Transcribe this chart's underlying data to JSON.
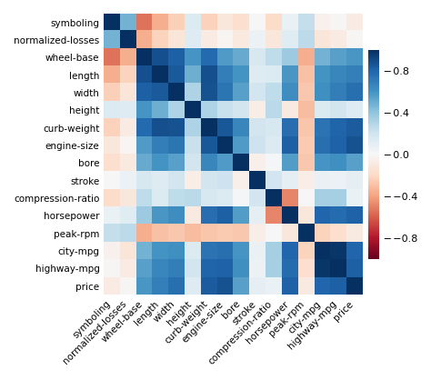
{
  "labels": [
    "symboling",
    "normalized-losses",
    "wheel-base",
    "length",
    "width",
    "height",
    "curb-weight",
    "engine-size",
    "bore",
    "stroke",
    "compression-ratio",
    "horsepower",
    "peak-rpm",
    "city-mpg",
    "highway-mpg",
    "price"
  ],
  "corr_matrix": [
    [
      1.0,
      0.47,
      -0.54,
      -0.36,
      -0.24,
      0.14,
      -0.23,
      -0.11,
      -0.17,
      0.0,
      -0.18,
      0.07,
      0.24,
      -0.04,
      -0.01,
      -0.08
    ],
    [
      0.47,
      1.0,
      -0.36,
      -0.22,
      -0.12,
      0.13,
      -0.08,
      -0.02,
      -0.1,
      0.06,
      -0.11,
      0.12,
      0.26,
      -0.12,
      -0.08,
      -0.01
    ],
    [
      -0.54,
      -0.36,
      1.0,
      0.88,
      0.82,
      0.59,
      0.78,
      0.57,
      0.5,
      0.16,
      0.25,
      0.36,
      -0.36,
      0.47,
      0.54,
      0.58
    ],
    [
      -0.36,
      -0.22,
      0.88,
      1.0,
      0.84,
      0.49,
      0.88,
      0.69,
      0.6,
      0.13,
      0.14,
      0.58,
      -0.29,
      0.6,
      0.65,
      0.68
    ],
    [
      -0.24,
      -0.12,
      0.82,
      0.84,
      1.0,
      0.31,
      0.87,
      0.73,
      0.54,
      0.18,
      0.25,
      0.62,
      -0.27,
      0.61,
      0.69,
      0.75
    ],
    [
      0.14,
      0.13,
      0.59,
      0.49,
      0.31,
      1.0,
      0.31,
      0.22,
      0.18,
      -0.06,
      0.27,
      -0.09,
      -0.31,
      0.14,
      0.18,
      0.13
    ],
    [
      -0.23,
      -0.08,
      0.78,
      0.88,
      0.87,
      0.31,
      1.0,
      0.85,
      0.65,
      0.18,
      0.16,
      0.76,
      -0.28,
      0.74,
      0.8,
      0.83
    ],
    [
      -0.11,
      -0.02,
      0.57,
      0.69,
      0.73,
      0.22,
      0.85,
      1.0,
      0.57,
      0.21,
      0.14,
      0.82,
      -0.26,
      0.75,
      0.81,
      0.87
    ],
    [
      -0.17,
      -0.1,
      0.5,
      0.6,
      0.54,
      0.18,
      0.65,
      0.57,
      1.0,
      -0.05,
      0.01,
      0.56,
      -0.27,
      0.59,
      0.61,
      0.54
    ],
    [
      0.0,
      0.06,
      0.16,
      0.13,
      0.18,
      -0.06,
      0.18,
      0.21,
      -0.05,
      1.0,
      0.19,
      0.1,
      -0.07,
      0.07,
      0.06,
      0.09
    ],
    [
      -0.18,
      -0.11,
      0.25,
      0.14,
      0.25,
      0.27,
      0.16,
      0.14,
      0.01,
      0.19,
      1.0,
      -0.49,
      0.0,
      0.33,
      0.33,
      0.07
    ],
    [
      0.07,
      0.12,
      0.36,
      0.58,
      0.62,
      -0.09,
      0.76,
      0.82,
      0.56,
      0.1,
      -0.49,
      1.0,
      -0.11,
      0.79,
      0.77,
      0.81
    ],
    [
      0.24,
      0.26,
      -0.36,
      -0.29,
      -0.27,
      -0.31,
      -0.28,
      -0.26,
      -0.27,
      -0.07,
      0.0,
      -0.11,
      1.0,
      -0.22,
      -0.17,
      -0.09
    ],
    [
      -0.04,
      -0.12,
      0.47,
      0.6,
      0.61,
      0.14,
      0.74,
      0.75,
      0.59,
      0.07,
      0.33,
      0.79,
      -0.22,
      1.0,
      0.97,
      0.79
    ],
    [
      -0.01,
      -0.08,
      0.54,
      0.65,
      0.69,
      0.18,
      0.8,
      0.81,
      0.61,
      0.06,
      0.33,
      0.77,
      -0.17,
      0.97,
      1.0,
      0.82
    ],
    [
      -0.08,
      -0.01,
      0.58,
      0.68,
      0.75,
      0.13,
      0.83,
      0.87,
      0.54,
      0.09,
      0.07,
      0.81,
      -0.09,
      0.79,
      0.82,
      1.0
    ]
  ],
  "cmap": "RdBu",
  "vmin": -1.0,
  "vmax": 1.0,
  "colorbar_ticks": [
    0.8,
    0.4,
    0.0,
    -0.4,
    -0.8
  ],
  "colorbar_ticklabels": [
    "– 0.8",
    "– 0.4",
    "– 0.0",
    "– −0.4",
    "– −0.8"
  ],
  "background_color": "#ffffff",
  "tick_fontsize": 7.5,
  "cbar_tick_fontsize": 8
}
